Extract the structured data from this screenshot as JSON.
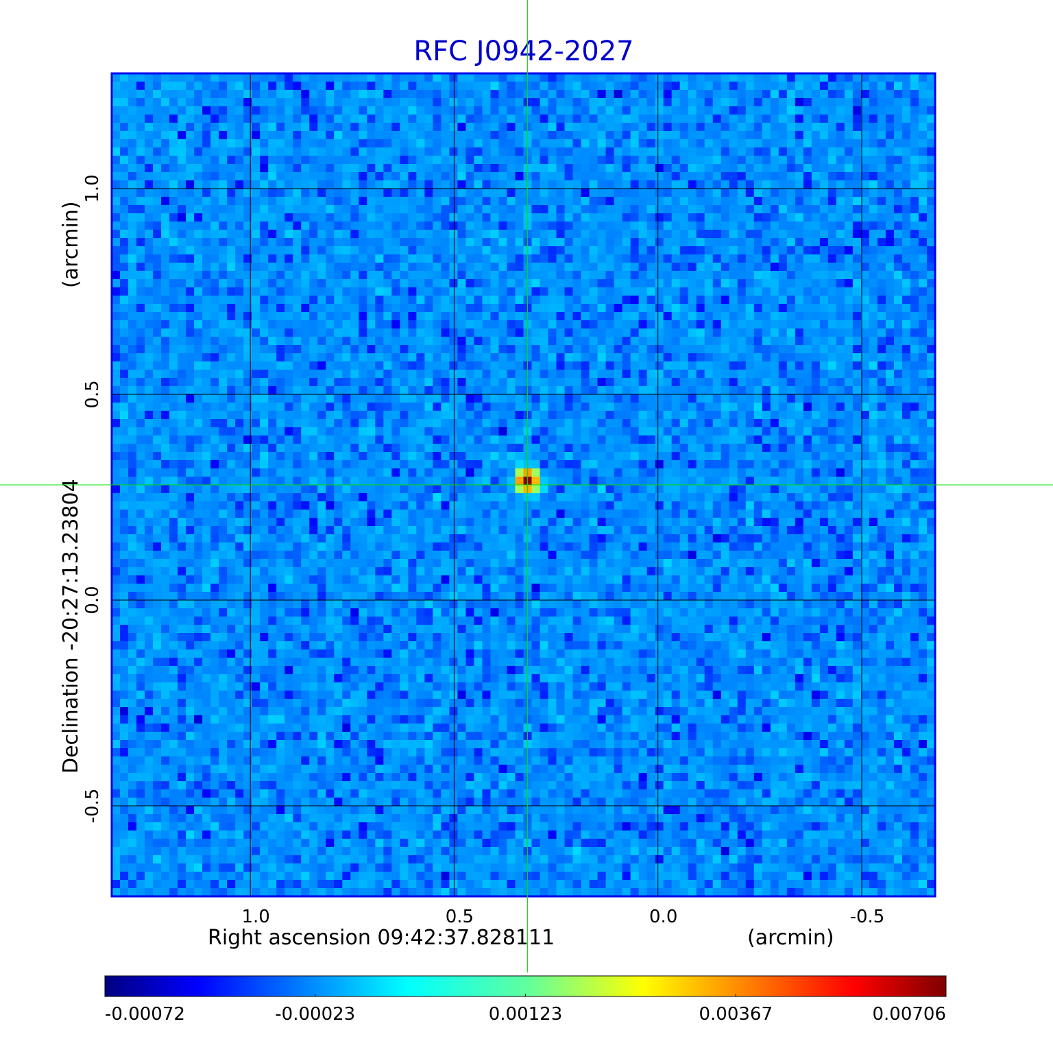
{
  "chart_data": {
    "type": "heatmap",
    "title": "RFC J0942-2027",
    "xlabel": "Right ascension  09:42:37.828111",
    "xunit": "(arcmin)",
    "ylabel": "Declination  -20:27:13.23804",
    "yunit": "(arcmin)",
    "xlim": [
      1.34,
      -0.68
    ],
    "ylim": [
      -0.72,
      1.28
    ],
    "x_ticks": [
      {
        "value": 1.0,
        "label": "1.0"
      },
      {
        "value": 0.5,
        "label": "0.5"
      },
      {
        "value": 0.0,
        "label": "0.0"
      },
      {
        "value": -0.5,
        "label": "-0.5"
      }
    ],
    "y_ticks": [
      {
        "value": 1.0,
        "label": "1.0"
      },
      {
        "value": 0.5,
        "label": "0.5"
      },
      {
        "value": 0.0,
        "label": "0.0"
      },
      {
        "value": -0.5,
        "label": "-0.5"
      }
    ],
    "grid": true,
    "crosshair": {
      "x": 0.32,
      "y": 0.28,
      "color": "#00e000"
    },
    "source": {
      "x": 0.32,
      "y": 0.29,
      "peak": 0.00706
    },
    "noise_range": [
      -0.00072,
      0.0003
    ],
    "colorbar": {
      "min": -0.00072,
      "max": 0.00706,
      "ticks": [
        {
          "fraction": 0.0,
          "label": "-0.00072"
        },
        {
          "fraction": 0.25,
          "label": "-0.00023"
        },
        {
          "fraction": 0.5,
          "label": "0.00123"
        },
        {
          "fraction": 0.75,
          "label": "0.00367"
        },
        {
          "fraction": 1.0,
          "label": "0.00706"
        }
      ]
    }
  },
  "colors": {
    "title": "#0000cc",
    "frame": "#0000ee",
    "grid": "#000000",
    "crosshair": "#00e000"
  }
}
